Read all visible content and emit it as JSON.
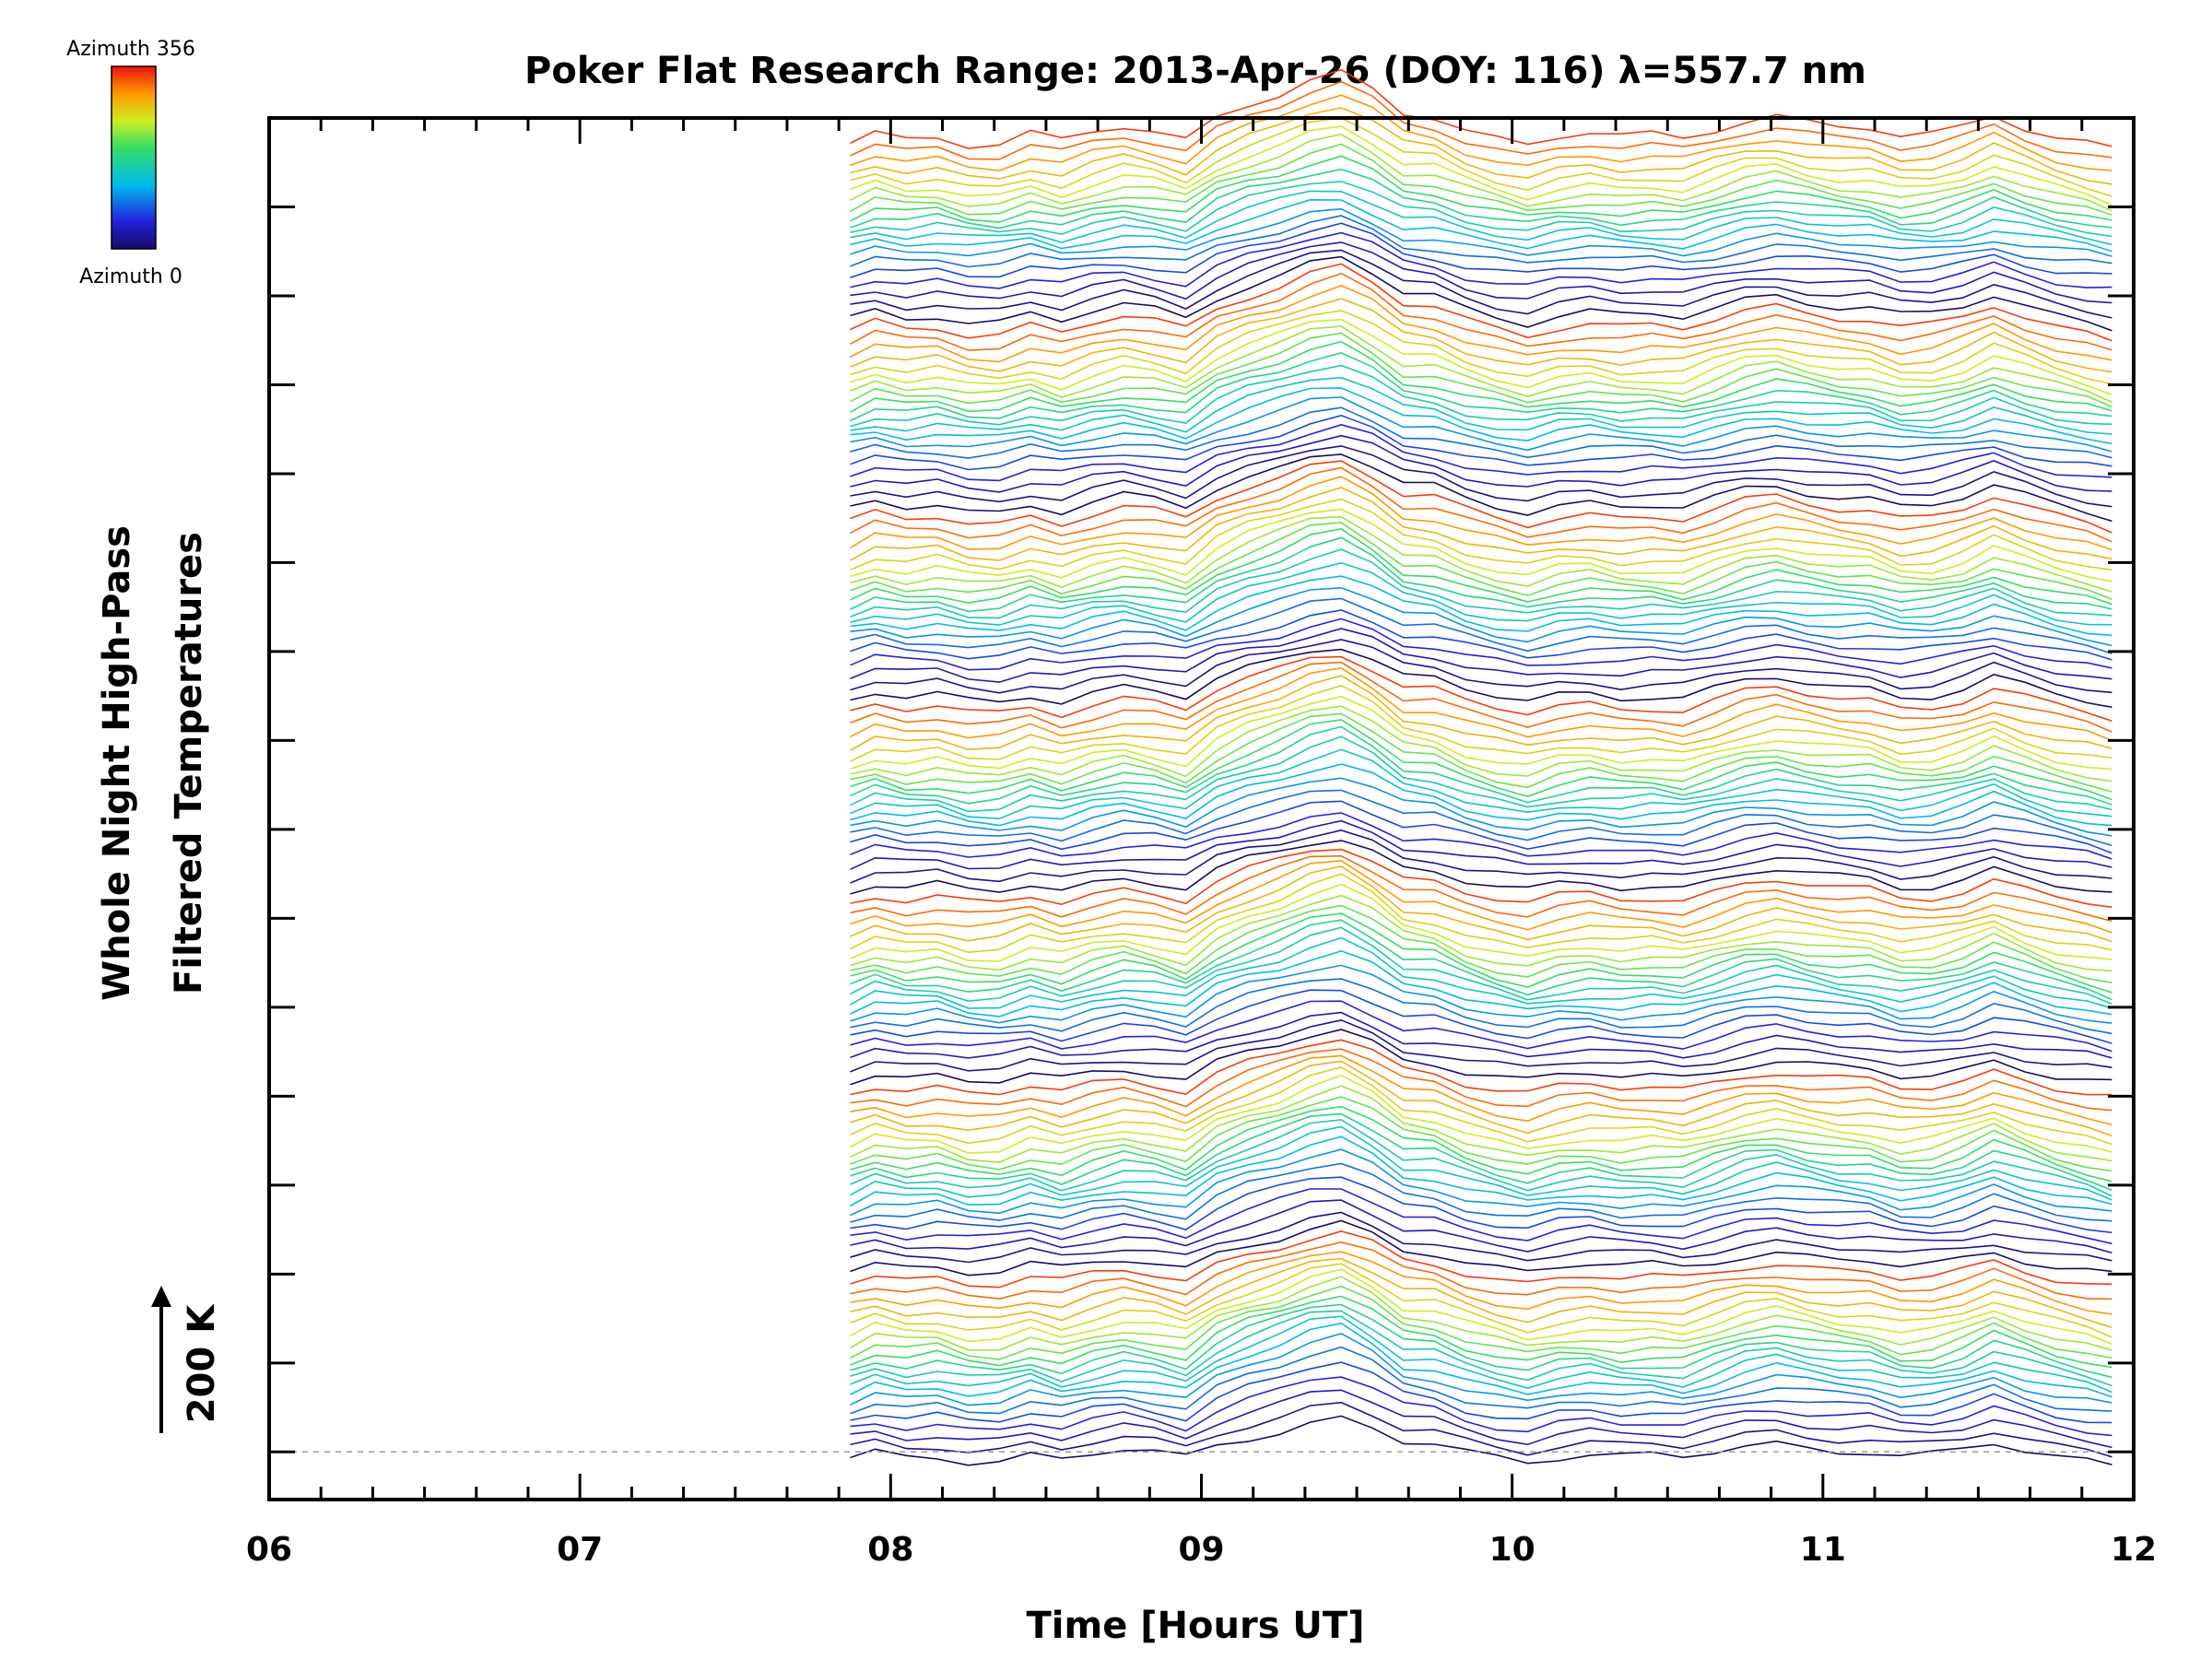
{
  "chart_data": {
    "type": "line",
    "title": "Poker Flat Research Range: 2013-Apr-26 (DOY: 116) λ=557.7 nm",
    "xlabel": "Time [Hours UT]",
    "ylabel_lines": [
      "Whole Night High-Pass",
      "Filtered Temperatures"
    ],
    "scale_label": "200 K",
    "x_ticks": [
      "06",
      "07",
      "08",
      "09",
      "10",
      "11",
      "12"
    ],
    "x_tick_values": [
      6,
      7,
      8,
      9,
      10,
      11,
      12
    ],
    "xlim": [
      6,
      12
    ],
    "colorbar": {
      "top_label": "Azimuth 356",
      "bottom_label": "Azimuth 0",
      "min_azimuth": 0,
      "max_azimuth": 356,
      "colormap": "rainbow"
    },
    "series_count": 140,
    "offset_per_series_K": 40,
    "baseline_K": 0,
    "ylim_K": [
      -200,
      5600
    ],
    "scale_K": 200,
    "y_major_tick_count": 15,
    "note": "Stacked temperature traces; each trace shifted upward by a constant offset; colour encodes azimuth, cycling through the full rainbow 7 times.",
    "profile_x": [
      7.87,
      7.95,
      8.05,
      8.15,
      8.25,
      8.35,
      8.45,
      8.55,
      8.65,
      8.75,
      8.85,
      8.95,
      9.05,
      9.15,
      9.25,
      9.35,
      9.45,
      9.55,
      9.65,
      9.75,
      9.85,
      9.95,
      10.05,
      10.15,
      10.25,
      10.35,
      10.45,
      10.55,
      10.65,
      10.75,
      10.85,
      10.95,
      11.05,
      11.15,
      11.25,
      11.35,
      11.45,
      11.55,
      11.65,
      11.75,
      11.85,
      11.93
    ],
    "profile_y": [
      -40,
      -10,
      -30,
      -20,
      -45,
      -45,
      -15,
      -40,
      -10,
      10,
      -5,
      -30,
      40,
      80,
      110,
      150,
      170,
      120,
      50,
      40,
      0,
      -25,
      -45,
      -20,
      -10,
      -25,
      -20,
      -30,
      0,
      30,
      45,
      25,
      10,
      5,
      -25,
      -20,
      5,
      45,
      10,
      -20,
      -40,
      -60
    ]
  }
}
